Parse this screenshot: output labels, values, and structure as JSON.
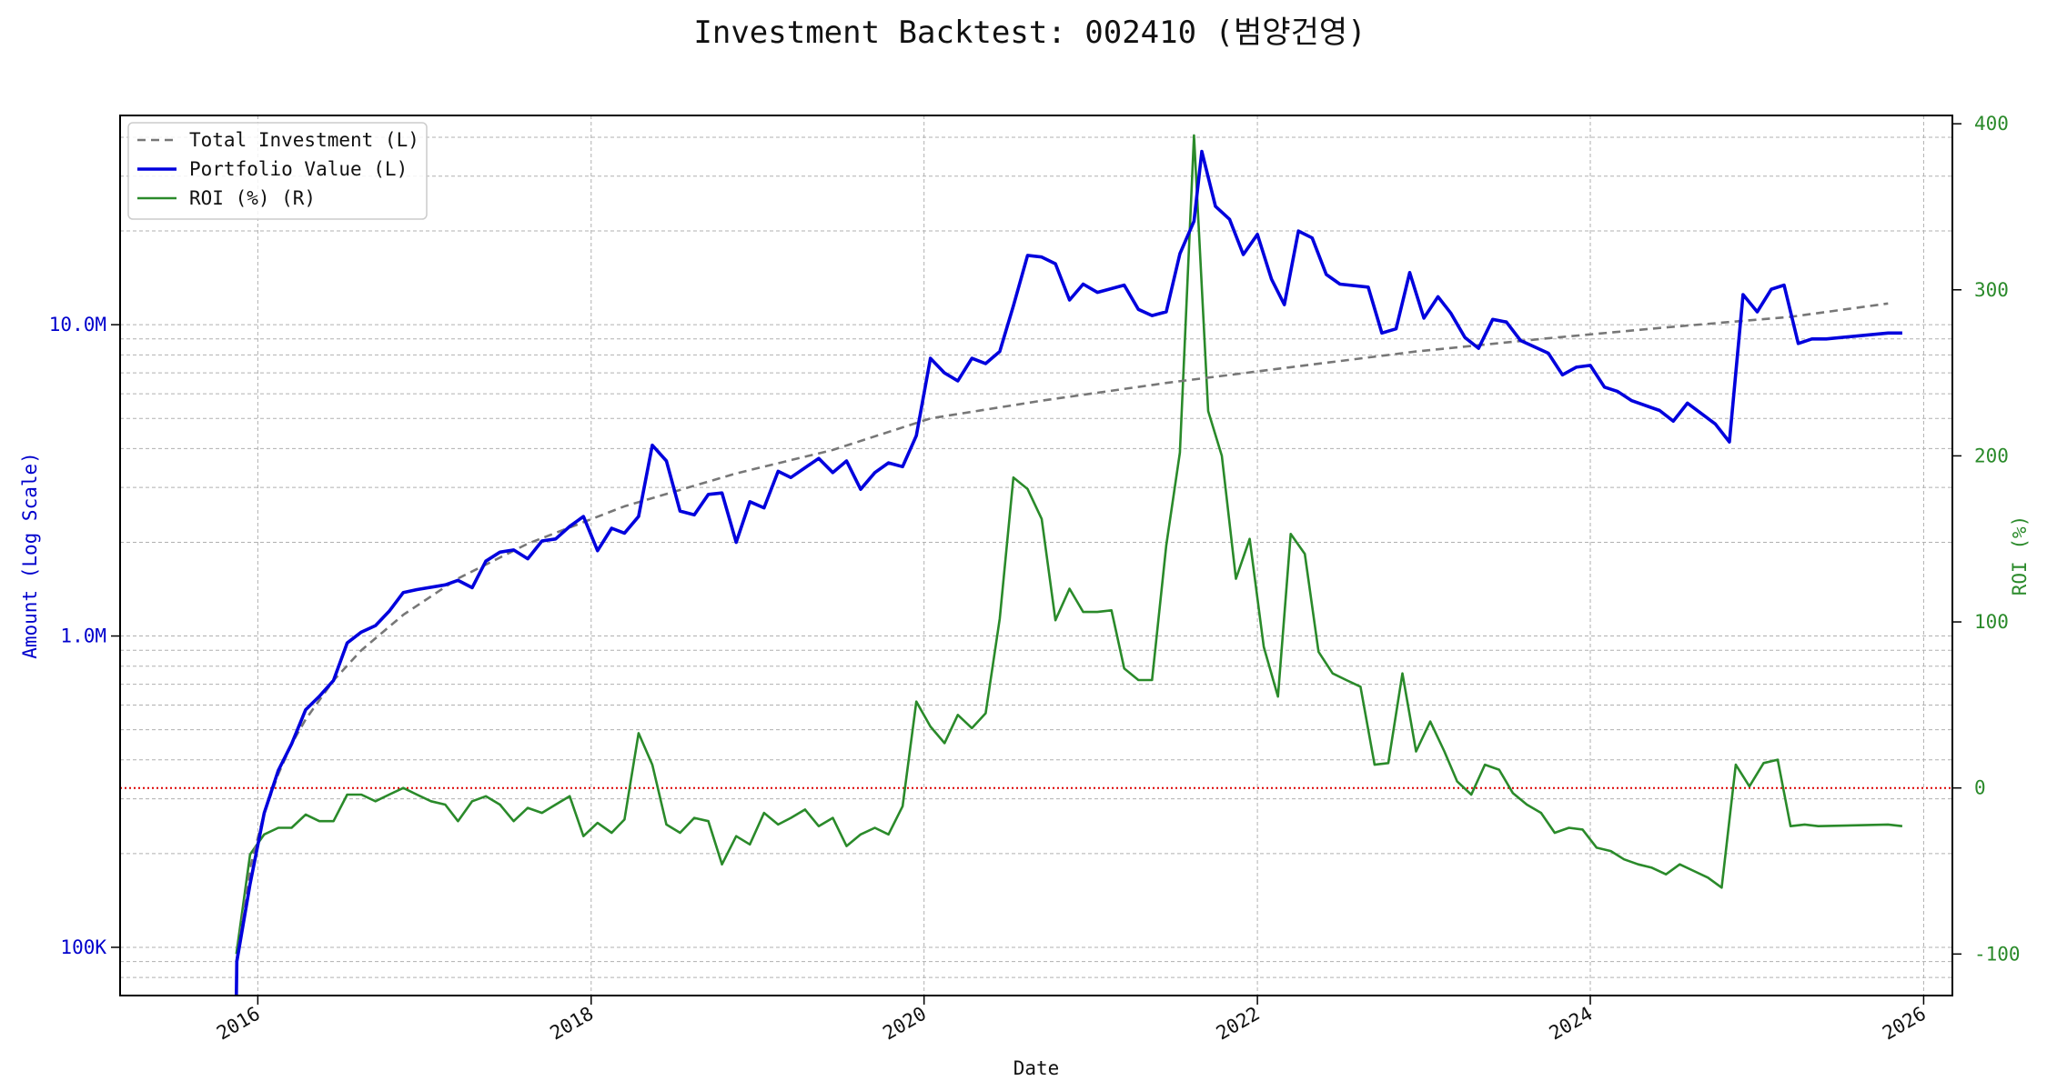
{
  "title": "Investment Backtest: 002410 (범양건영)",
  "colors": {
    "investment": "#777777",
    "portfolio": "#0000dd",
    "roi": "#2a8a2a",
    "zero_line": "#dd0000",
    "grid": "#b0b0b0",
    "left_axis": "#0000cc",
    "right_axis": "#2a8a2a"
  },
  "chart_data": {
    "type": "line",
    "title": "Investment Backtest: 002410 (범양건영)",
    "xlabel": "Date",
    "ylabel_left": "Amount (Log Scale)",
    "ylabel_right": "ROI (%)",
    "y_left_scale": "log",
    "y_left_ticks": [
      {
        "value": 100000,
        "label": "100K"
      },
      {
        "value": 1000000,
        "label": "1.0M"
      },
      {
        "value": 10000000,
        "label": "10.0M"
      }
    ],
    "y_right_ticks": [
      -100,
      0,
      100,
      200,
      300,
      400
    ],
    "x_ticks": [
      "2016",
      "2018",
      "2020",
      "2022",
      "2024",
      "2026"
    ],
    "x_range": [
      "2015-03-05",
      "2026-03-05"
    ],
    "y_left_range": [
      70000,
      47000000
    ],
    "y_right_range": [
      -125,
      405
    ],
    "grid": true,
    "legend_position": "upper-left",
    "legend": [
      "Total Investment (L)",
      "Portfolio Value (L)",
      "ROI (%) (R)"
    ],
    "zero_reference_line": 0,
    "series": [
      {
        "name": "Total Investment (L)",
        "axis": "left",
        "style": "dashed",
        "points": [
          [
            "2015-11-15",
            90000
          ],
          [
            "2015-12-15",
            180000
          ],
          [
            "2016-01-15",
            270000
          ],
          [
            "2016-02-15",
            360000
          ],
          [
            "2016-03-15",
            450000
          ],
          [
            "2016-04-15",
            540000
          ],
          [
            "2016-06-15",
            720000
          ],
          [
            "2016-08-15",
            900000
          ],
          [
            "2016-11-15",
            1170000
          ],
          [
            "2017-03-15",
            1530000
          ],
          [
            "2017-08-15",
            1980000
          ],
          [
            "2018-03-15",
            2610000
          ],
          [
            "2018-11-15",
            3330000
          ],
          [
            "2019-06-15",
            3960000
          ],
          [
            "2020-01-15",
            5000000
          ],
          [
            "2020-09-15",
            5700000
          ],
          [
            "2021-06-15",
            6500000
          ],
          [
            "2022-03-15",
            7300000
          ],
          [
            "2022-12-15",
            8200000
          ],
          [
            "2023-09-15",
            9000000
          ],
          [
            "2024-06-15",
            9800000
          ],
          [
            "2025-03-15",
            10600000
          ],
          [
            "2025-10-15",
            11700000
          ]
        ]
      },
      {
        "name": "Portfolio Value (L)",
        "axis": "left",
        "style": "solid",
        "points": [
          [
            "2015-11-15",
            60000
          ],
          [
            "2015-11-16",
            90000
          ],
          [
            "2015-12-15",
            160000
          ],
          [
            "2016-01-15",
            270000
          ],
          [
            "2016-02-15",
            370000
          ],
          [
            "2016-03-15",
            450000
          ],
          [
            "2016-04-15",
            580000
          ],
          [
            "2016-05-15",
            640000
          ],
          [
            "2016-06-15",
            720000
          ],
          [
            "2016-07-15",
            950000
          ],
          [
            "2016-08-15",
            1030000
          ],
          [
            "2016-09-15",
            1080000
          ],
          [
            "2016-10-15",
            1200000
          ],
          [
            "2016-11-15",
            1380000
          ],
          [
            "2016-12-15",
            1410000
          ],
          [
            "2017-02-15",
            1460000
          ],
          [
            "2017-03-15",
            1510000
          ],
          [
            "2017-04-15",
            1430000
          ],
          [
            "2017-05-15",
            1740000
          ],
          [
            "2017-06-15",
            1860000
          ],
          [
            "2017-07-15",
            1890000
          ],
          [
            "2017-08-15",
            1770000
          ],
          [
            "2017-09-15",
            2020000
          ],
          [
            "2017-10-15",
            2050000
          ],
          [
            "2017-11-15",
            2250000
          ],
          [
            "2017-12-15",
            2420000
          ],
          [
            "2018-01-15",
            1880000
          ],
          [
            "2018-02-15",
            2220000
          ],
          [
            "2018-03-15",
            2140000
          ],
          [
            "2018-04-15",
            2420000
          ],
          [
            "2018-05-15",
            4100000
          ],
          [
            "2018-06-15",
            3650000
          ],
          [
            "2018-07-15",
            2520000
          ],
          [
            "2018-08-15",
            2450000
          ],
          [
            "2018-09-15",
            2850000
          ],
          [
            "2018-10-15",
            2880000
          ],
          [
            "2018-11-15",
            2000000
          ],
          [
            "2018-12-15",
            2700000
          ],
          [
            "2019-01-15",
            2580000
          ],
          [
            "2019-02-15",
            3380000
          ],
          [
            "2019-03-15",
            3230000
          ],
          [
            "2019-05-15",
            3720000
          ],
          [
            "2019-06-15",
            3350000
          ],
          [
            "2019-07-15",
            3650000
          ],
          [
            "2019-08-15",
            2960000
          ],
          [
            "2019-09-15",
            3350000
          ],
          [
            "2019-10-15",
            3600000
          ],
          [
            "2019-11-15",
            3500000
          ],
          [
            "2019-12-15",
            4400000
          ],
          [
            "2020-01-15",
            7800000
          ],
          [
            "2020-02-15",
            7000000
          ],
          [
            "2020-03-15",
            6600000
          ],
          [
            "2020-04-15",
            7800000
          ],
          [
            "2020-05-15",
            7500000
          ],
          [
            "2020-06-15",
            8200000
          ],
          [
            "2020-07-15",
            11500000
          ],
          [
            "2020-08-15",
            16700000
          ],
          [
            "2020-09-15",
            16500000
          ],
          [
            "2020-10-15",
            15700000
          ],
          [
            "2020-11-15",
            12000000
          ],
          [
            "2020-12-15",
            13500000
          ],
          [
            "2021-01-15",
            12700000
          ],
          [
            "2021-03-15",
            13400000
          ],
          [
            "2021-04-15",
            11200000
          ],
          [
            "2021-05-15",
            10700000
          ],
          [
            "2021-06-15",
            11000000
          ],
          [
            "2021-07-15",
            16900000
          ],
          [
            "2021-08-15",
            21500000
          ],
          [
            "2021-09-01",
            36000000
          ],
          [
            "2021-10-01",
            24000000
          ],
          [
            "2021-11-01",
            21800000
          ],
          [
            "2021-12-01",
            16800000
          ],
          [
            "2022-01-01",
            19500000
          ],
          [
            "2022-02-01",
            14000000
          ],
          [
            "2022-03-01",
            11600000
          ],
          [
            "2022-04-01",
            20000000
          ],
          [
            "2022-05-01",
            19000000
          ],
          [
            "2022-06-01",
            14500000
          ],
          [
            "2022-07-01",
            13500000
          ],
          [
            "2022-09-01",
            13200000
          ],
          [
            "2022-10-01",
            9400000
          ],
          [
            "2022-11-01",
            9700000
          ],
          [
            "2022-12-01",
            14700000
          ],
          [
            "2023-01-01",
            10500000
          ],
          [
            "2023-02-01",
            12300000
          ],
          [
            "2023-03-01",
            10900000
          ],
          [
            "2023-04-01",
            9100000
          ],
          [
            "2023-05-01",
            8400000
          ],
          [
            "2023-06-01",
            10400000
          ],
          [
            "2023-07-01",
            10200000
          ],
          [
            "2023-08-01",
            8900000
          ],
          [
            "2023-10-01",
            8100000
          ],
          [
            "2023-11-01",
            6900000
          ],
          [
            "2023-12-01",
            7300000
          ],
          [
            "2024-01-01",
            7400000
          ],
          [
            "2024-02-01",
            6300000
          ],
          [
            "2024-03-01",
            6100000
          ],
          [
            "2024-04-01",
            5700000
          ],
          [
            "2024-06-01",
            5300000
          ],
          [
            "2024-07-01",
            4900000
          ],
          [
            "2024-08-01",
            5600000
          ],
          [
            "2024-10-01",
            4800000
          ],
          [
            "2024-11-01",
            4200000
          ],
          [
            "2024-12-01",
            12500000
          ],
          [
            "2025-01-01",
            11000000
          ],
          [
            "2025-02-01",
            13000000
          ],
          [
            "2025-03-01",
            13400000
          ],
          [
            "2025-04-01",
            8700000
          ],
          [
            "2025-05-01",
            9000000
          ],
          [
            "2025-06-01",
            9000000
          ],
          [
            "2025-10-15",
            9400000
          ],
          [
            "2025-11-15",
            9400000
          ]
        ]
      },
      {
        "name": "ROI (%) (R)",
        "axis": "right",
        "style": "solid",
        "points": [
          [
            "2015-11-15",
            -100
          ],
          [
            "2015-12-15",
            -40
          ],
          [
            "2016-01-15",
            -28
          ],
          [
            "2016-02-15",
            -24
          ],
          [
            "2016-03-15",
            -24
          ],
          [
            "2016-04-15",
            -16
          ],
          [
            "2016-05-15",
            -20
          ],
          [
            "2016-06-15",
            -20
          ],
          [
            "2016-07-15",
            -4
          ],
          [
            "2016-08-15",
            -4
          ],
          [
            "2016-09-15",
            -8
          ],
          [
            "2016-10-15",
            -4
          ],
          [
            "2016-11-15",
            0
          ],
          [
            "2016-12-15",
            -4
          ],
          [
            "2017-01-15",
            -8
          ],
          [
            "2017-02-15",
            -10
          ],
          [
            "2017-03-15",
            -20
          ],
          [
            "2017-04-15",
            -8
          ],
          [
            "2017-05-15",
            -5
          ],
          [
            "2017-06-15",
            -10
          ],
          [
            "2017-07-15",
            -20
          ],
          [
            "2017-08-15",
            -12
          ],
          [
            "2017-09-15",
            -15
          ],
          [
            "2017-10-15",
            -10
          ],
          [
            "2017-11-15",
            -5
          ],
          [
            "2017-12-15",
            -29
          ],
          [
            "2018-01-15",
            -21
          ],
          [
            "2018-02-15",
            -27
          ],
          [
            "2018-03-15",
            -19
          ],
          [
            "2018-04-15",
            33
          ],
          [
            "2018-05-15",
            14
          ],
          [
            "2018-06-15",
            -22
          ],
          [
            "2018-07-15",
            -27
          ],
          [
            "2018-08-15",
            -18
          ],
          [
            "2018-09-15",
            -20
          ],
          [
            "2018-10-15",
            -46
          ],
          [
            "2018-11-15",
            -29
          ],
          [
            "2018-12-15",
            -34
          ],
          [
            "2019-01-15",
            -15
          ],
          [
            "2019-02-15",
            -22
          ],
          [
            "2019-03-15",
            -18
          ],
          [
            "2019-04-15",
            -13
          ],
          [
            "2019-05-15",
            -23
          ],
          [
            "2019-06-15",
            -18
          ],
          [
            "2019-07-15",
            -35
          ],
          [
            "2019-08-15",
            -28
          ],
          [
            "2019-09-15",
            -24
          ],
          [
            "2019-10-15",
            -28
          ],
          [
            "2019-11-15",
            -11
          ],
          [
            "2019-12-15",
            52
          ],
          [
            "2020-01-15",
            37
          ],
          [
            "2020-02-15",
            27
          ],
          [
            "2020-03-15",
            44
          ],
          [
            "2020-04-15",
            36
          ],
          [
            "2020-05-15",
            45
          ],
          [
            "2020-06-15",
            102
          ],
          [
            "2020-07-15",
            187
          ],
          [
            "2020-08-15",
            180
          ],
          [
            "2020-09-15",
            162
          ],
          [
            "2020-10-15",
            101
          ],
          [
            "2020-11-15",
            120
          ],
          [
            "2020-12-15",
            106
          ],
          [
            "2021-01-15",
            106
          ],
          [
            "2021-02-15",
            107
          ],
          [
            "2021-03-15",
            72
          ],
          [
            "2021-04-15",
            65
          ],
          [
            "2021-05-15",
            65
          ],
          [
            "2021-06-15",
            146
          ],
          [
            "2021-07-15",
            202
          ],
          [
            "2021-08-15",
            393
          ],
          [
            "2021-09-15",
            227
          ],
          [
            "2021-10-15",
            200
          ],
          [
            "2021-11-15",
            126
          ],
          [
            "2021-12-15",
            150
          ],
          [
            "2022-01-15",
            85
          ],
          [
            "2022-02-15",
            55
          ],
          [
            "2022-03-15",
            153
          ],
          [
            "2022-04-15",
            141
          ],
          [
            "2022-05-15",
            82
          ],
          [
            "2022-06-15",
            69
          ],
          [
            "2022-07-15",
            65
          ],
          [
            "2022-08-15",
            61
          ],
          [
            "2022-09-15",
            14
          ],
          [
            "2022-10-15",
            15
          ],
          [
            "2022-11-15",
            69
          ],
          [
            "2022-12-15",
            22
          ],
          [
            "2023-01-15",
            40
          ],
          [
            "2023-02-15",
            22
          ],
          [
            "2023-03-15",
            4
          ],
          [
            "2023-04-15",
            -4
          ],
          [
            "2023-05-15",
            14
          ],
          [
            "2023-06-15",
            11
          ],
          [
            "2023-07-15",
            -3
          ],
          [
            "2023-08-15",
            -10
          ],
          [
            "2023-09-15",
            -15
          ],
          [
            "2023-10-15",
            -27
          ],
          [
            "2023-11-15",
            -24
          ],
          [
            "2023-12-15",
            -25
          ],
          [
            "2024-01-15",
            -36
          ],
          [
            "2024-02-15",
            -38
          ],
          [
            "2024-03-15",
            -43
          ],
          [
            "2024-04-15",
            -46
          ],
          [
            "2024-05-15",
            -48
          ],
          [
            "2024-06-15",
            -52
          ],
          [
            "2024-07-15",
            -46
          ],
          [
            "2024-08-15",
            -50
          ],
          [
            "2024-09-15",
            -54
          ],
          [
            "2024-10-15",
            -60
          ],
          [
            "2024-11-15",
            14
          ],
          [
            "2024-12-15",
            1
          ],
          [
            "2025-01-15",
            15
          ],
          [
            "2025-02-15",
            17
          ],
          [
            "2025-03-15",
            -23
          ],
          [
            "2025-04-15",
            -22
          ],
          [
            "2025-05-15",
            -23
          ],
          [
            "2025-10-15",
            -22
          ],
          [
            "2025-11-15",
            -23
          ]
        ]
      }
    ]
  }
}
